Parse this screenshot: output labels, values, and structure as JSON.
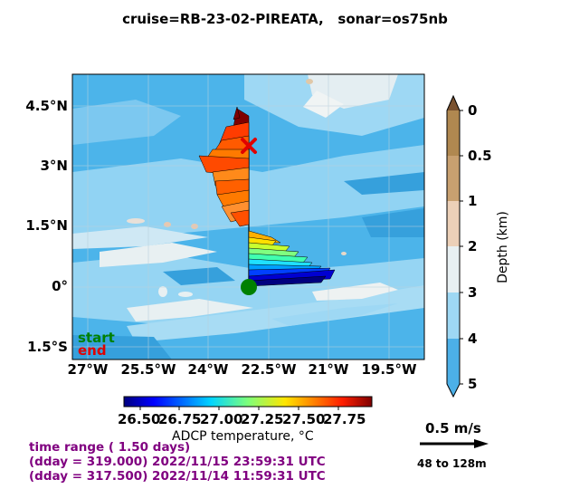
{
  "title": {
    "cruise_label": "cruise=RB-23-02-PIREATA,",
    "sonar_label": "sonar=os75nb"
  },
  "map": {
    "lat_ticks": [
      "4.5°N",
      "3°N",
      "1.5°N",
      "0°",
      "1.5°S"
    ],
    "lon_ticks": [
      "27°W",
      "25.5°W",
      "24°W",
      "22.5°W",
      "21°W",
      "19.5°W"
    ],
    "legend_start": "start",
    "legend_end": "end",
    "start_color": "#008000",
    "end_color": "#e00000"
  },
  "depth_colorbar": {
    "label": "Depth (km)",
    "ticks": [
      "0",
      "0.5",
      "1",
      "2",
      "3",
      "4",
      "5"
    ],
    "colors": [
      "#b08850",
      "#c8a070",
      "#ecd0b8",
      "#e8f0f2",
      "#9ed8f4",
      "#4cb0e8"
    ]
  },
  "temp_colorbar": {
    "label": "ADCP temperature, °C",
    "ticks": [
      "26.50",
      "26.75",
      "27.00",
      "27.25",
      "27.50",
      "27.75"
    ]
  },
  "scale": {
    "speed_label": "0.5 m/s",
    "depth_range": "48 to 128m"
  },
  "time_info": {
    "range": "time range ( 1.50 days)",
    "end_line": "(dday = 319.000) 2022/11/15 23:59:31 UTC",
    "start_line": "(dday = 317.500) 2022/11/14 11:59:31 UTC"
  }
}
